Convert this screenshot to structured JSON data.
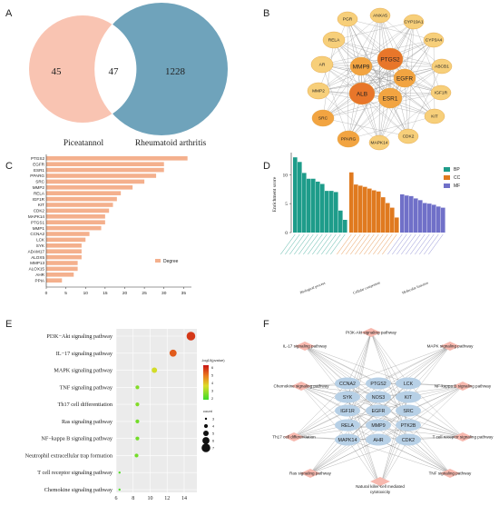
{
  "panels": {
    "A": "A",
    "B": "B",
    "C": "C",
    "D": "D",
    "E": "E",
    "F": "F"
  },
  "venn": {
    "left_label": "Piceatannol",
    "right_label": "Rheumatoid arthritis",
    "left_only": "45",
    "overlap": "47",
    "right_only": "1228",
    "colors": {
      "left": "#f9c4b2",
      "right": "#6fa3bb"
    }
  },
  "ppi_network": {
    "nodes_outer": [
      "PGR",
      "ANXA5",
      "CYP19A1",
      "CYP3A4",
      "ABCB1",
      "IGF1R",
      "KIT",
      "CDK2",
      "MAPK14",
      "PPARG",
      "SRC",
      "MMP2",
      "AR",
      "RELA"
    ],
    "nodes_inner": [
      "MMP9",
      "PTGS2",
      "EGFR",
      "ESR1",
      "ALB"
    ],
    "colors": {
      "outer": "#f7cf7a",
      "mid": "#f2a441",
      "core": "#e8762a"
    }
  },
  "chart_data": [
    {
      "type": "bar",
      "orientation": "horizontal",
      "categories": [
        "PTGS2",
        "EGFR",
        "ESR1",
        "PPARG",
        "SRC",
        "MMP2",
        "RELA",
        "IGF1R",
        "KIT",
        "CDK2",
        "MAPK14",
        "PTGS1",
        "MMP1",
        "CCNA2",
        "LCK",
        "SYK",
        "ADAM17",
        "ALOX5",
        "MMP13",
        "ALOX15",
        "AHR",
        "PPIA"
      ],
      "values": [
        36,
        30,
        30,
        28,
        25,
        22,
        19,
        18,
        17,
        16,
        15,
        15,
        14,
        11,
        10,
        9,
        9,
        9,
        8,
        8,
        7,
        4
      ],
      "xticks": [
        "0",
        "5",
        "10",
        "15",
        "20",
        "25",
        "30",
        "35"
      ],
      "xlim": [
        0,
        37
      ],
      "legend": "Degree",
      "color": "#f4b08d"
    },
    {
      "type": "bar",
      "ylabel": "Enrichment score",
      "yticks": [
        "0",
        "5",
        "10"
      ],
      "ylim": [
        0,
        13.5
      ],
      "series": [
        {
          "name": "BP",
          "color": "#1e9c8a",
          "values": [
            13,
            12.2,
            10.3,
            9.3,
            9.3,
            8.8,
            8.4,
            7.2,
            7.2,
            7.0,
            3.8,
            2.2
          ]
        },
        {
          "name": "CC",
          "color": "#e07a1f",
          "values": [
            10.4,
            8.3,
            8.1,
            7.9,
            7.6,
            7.3,
            7.1,
            6.1,
            5.1,
            4.3,
            2.6
          ]
        },
        {
          "name": "MF",
          "color": "#7070c8",
          "values": [
            6.6,
            6.4,
            6.3,
            5.9,
            5.6,
            5.1,
            5.0,
            4.8,
            4.5,
            4.3
          ]
        }
      ],
      "groups": [
        "Biological process",
        "Cellular component",
        "Molecular function"
      ],
      "legend_position": "top-right"
    },
    {
      "type": "scatter",
      "y_categories": [
        "PI3K−Akt signaling pathway",
        "IL−17 signaling pathway",
        "MAPK signaling pathway",
        "TNF signaling pathway",
        "Th17 cell differentiation",
        "Ras signaling pathway",
        "NF−kappa B signaling pathway",
        "Neutrophil extracellular trap formation",
        "T cell receptor signaling pathway",
        "Chemokine signaling pathway"
      ],
      "x": [
        14.8,
        12.7,
        10.5,
        8.5,
        8.5,
        8.5,
        8.5,
        8.4,
        6.4,
        6.4
      ],
      "count": [
        7,
        6,
        5,
        4,
        4,
        4,
        4,
        4,
        3,
        3
      ],
      "neg_log_p": [
        5.6,
        5.2,
        3.4,
        2.4,
        2.4,
        2.2,
        2.2,
        2.2,
        1.8,
        1.7
      ],
      "xticks": [
        "6",
        "8",
        "10",
        "12",
        "14"
      ],
      "xlim": [
        6,
        15.5
      ],
      "color_legend_title": "-log10(pvalue)",
      "color_ticks": [
        "6",
        "5",
        "4",
        "3",
        "2"
      ],
      "size_legend_title": "count",
      "size_ticks": [
        "3",
        "4",
        "5",
        "6",
        "7"
      ]
    }
  ],
  "pathway_network": {
    "genes": [
      "CCNA2",
      "PTGS2",
      "LCK",
      "SYK",
      "NOS3",
      "KIT",
      "IGF1R",
      "EGFR",
      "SRC",
      "RELA",
      "MMP9",
      "PTK2B",
      "MAPK14",
      "AHR",
      "CDK2"
    ],
    "pathways": [
      "PI3K-Akt signaling pathway",
      "IL-17 signaling pathway",
      "MAPK signaling pathway",
      "Chemokine signaling pathway",
      "NF-kappa B signaling pathway",
      "Th17 cell differentiation",
      "T cell receptor signaling pathway",
      "Ras signaling pathway",
      "TNF signaling pathway",
      "Natural killer cell mediated",
      "cytotoxicity"
    ]
  }
}
